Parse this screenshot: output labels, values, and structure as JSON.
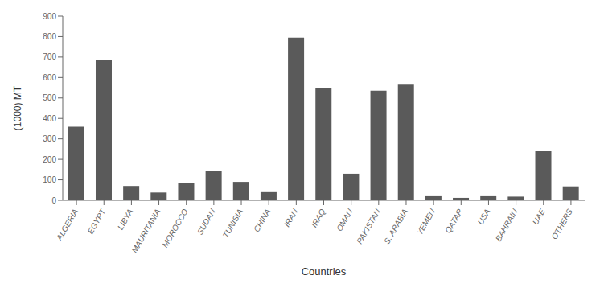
{
  "chart_data": {
    "type": "bar",
    "categories": [
      "ALGERIA",
      "EGYPT",
      "LIBYA",
      "MAURITANIA",
      "MOROCCO",
      "SUDAN",
      "TUNISIA",
      "CHINA",
      "IRAN",
      "IRAQ",
      "OMAN",
      "PAKISTAN",
      "S. ARABIA",
      "YEMEN",
      "QATAR",
      "USA",
      "BAHRAIN",
      "UAE",
      "OTHERS"
    ],
    "values": [
      360,
      685,
      70,
      38,
      85,
      143,
      90,
      40,
      795,
      548,
      130,
      535,
      565,
      20,
      12,
      20,
      18,
      240,
      68
    ],
    "color": "#5a5a5a",
    "xlabel": "Countries",
    "ylabel": "(1000) MT",
    "ylim": [
      0,
      900
    ],
    "yticks": [
      0,
      100,
      200,
      300,
      400,
      500,
      600,
      700,
      800,
      900
    ],
    "grid": false
  }
}
